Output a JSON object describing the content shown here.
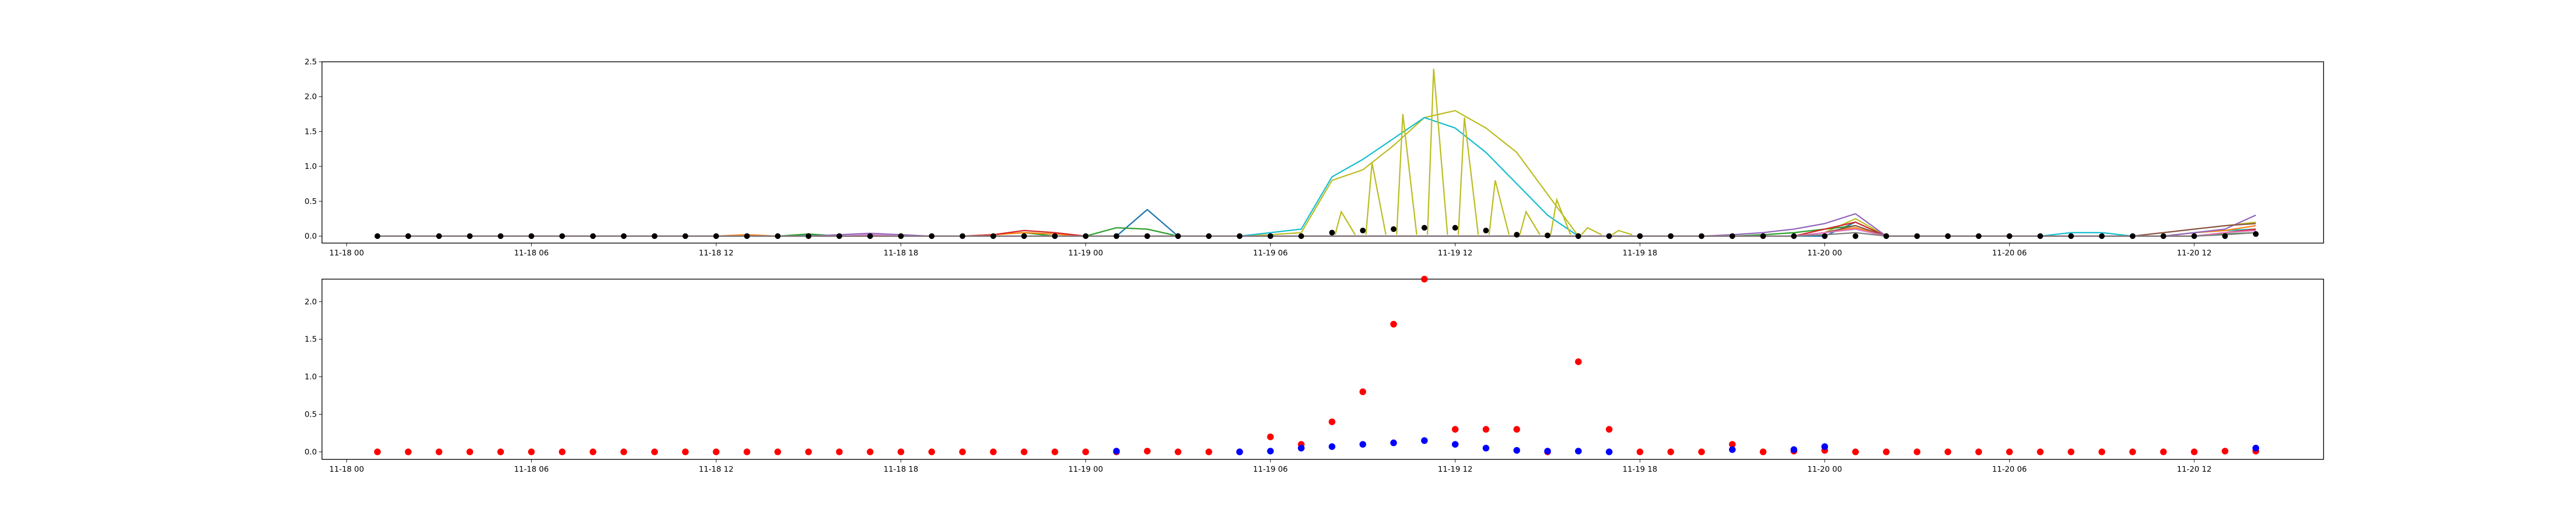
{
  "chart_data": [
    {
      "type": "line",
      "title": "",
      "xlabel": "",
      "ylabel": "",
      "grid": false,
      "legend": "none",
      "xlim": [
        -0.8,
        64.2
      ],
      "ylim": [
        -0.1,
        2.5
      ],
      "x_ticks": [
        {
          "x": 0,
          "label": "11-18 00"
        },
        {
          "x": 6,
          "label": "11-18 06"
        },
        {
          "x": 12,
          "label": "11-18 12"
        },
        {
          "x": 18,
          "label": "11-18 18"
        },
        {
          "x": 24,
          "label": "11-19 00"
        },
        {
          "x": 30,
          "label": "11-19 06"
        },
        {
          "x": 36,
          "label": "11-19 12"
        },
        {
          "x": 42,
          "label": "11-19 18"
        },
        {
          "x": 48,
          "label": "11-20 00"
        },
        {
          "x": 54,
          "label": "11-20 06"
        },
        {
          "x": 60,
          "label": "11-20 12"
        }
      ],
      "y_ticks": [
        {
          "y": 0,
          "label": "0.0"
        },
        {
          "y": 0.5,
          "label": "0.5"
        },
        {
          "y": 1,
          "label": "1.0"
        },
        {
          "y": 1.5,
          "label": "1.5"
        },
        {
          "y": 2,
          "label": "2.0"
        },
        {
          "y": 2.5,
          "label": "2.5"
        }
      ],
      "x_start": 1,
      "series": [
        {
          "color": "#bcbd22",
          "values": [
            0,
            0,
            0,
            0,
            0,
            0,
            0,
            0,
            0,
            0,
            0,
            0,
            0,
            0,
            0,
            0,
            0,
            0,
            0,
            0,
            0,
            0,
            0,
            0,
            0,
            0,
            0,
            0,
            0,
            0.02,
            0.05,
            0.8,
            0.95,
            1.3,
            1.7,
            1.8,
            1.55,
            1.2,
            0.6,
            0,
            0,
            0,
            0,
            0,
            0,
            0,
            0,
            0.05,
            0.25,
            0,
            0,
            0,
            0,
            0,
            0,
            0,
            0,
            0,
            0.05,
            0.1,
            0.15,
            0.2
          ]
        },
        {
          "color": "#17becf",
          "values": [
            0,
            0,
            0,
            0,
            0,
            0,
            0,
            0,
            0,
            0,
            0,
            0,
            0,
            0,
            0.02,
            0,
            0,
            0,
            0,
            0,
            0,
            0,
            0,
            0,
            0,
            0,
            0,
            0,
            0,
            0.05,
            0.1,
            0.85,
            1.1,
            1.4,
            1.7,
            1.55,
            1.2,
            0.75,
            0.3,
            0,
            0,
            0,
            0,
            0,
            0,
            0,
            0,
            0.05,
            0.1,
            0,
            0,
            0,
            0,
            0,
            0,
            0.05,
            0.05,
            0,
            0,
            0.05,
            0.08,
            0.1
          ]
        },
        {
          "color": "#1f77b4",
          "values": [
            0,
            0,
            0,
            0,
            0,
            0,
            0,
            0,
            0,
            0,
            0,
            0,
            0,
            0,
            0,
            0,
            0,
            0,
            0,
            0,
            0,
            0,
            0,
            0,
            0,
            0.38,
            0,
            0,
            0,
            0,
            0,
            0,
            0,
            0,
            0,
            0,
            0,
            0,
            0,
            0,
            0,
            0,
            0,
            0,
            0,
            0,
            0,
            0,
            0.2,
            0,
            0,
            0,
            0,
            0,
            0,
            0,
            0,
            0,
            0,
            0,
            0.05,
            0.1
          ]
        },
        {
          "color": "#2ca02c",
          "values": [
            0,
            0,
            0,
            0,
            0,
            0,
            0,
            0,
            0,
            0,
            0,
            0,
            0,
            0,
            0.03,
            0,
            0,
            0,
            0,
            0,
            0.02,
            0.05,
            0,
            0,
            0.12,
            0.1,
            0,
            0,
            0,
            0,
            0,
            0,
            0,
            0,
            0,
            0,
            0,
            0,
            0,
            0,
            0,
            0,
            0,
            0,
            0,
            0.02,
            0.05,
            0.1,
            0.15,
            0,
            0,
            0,
            0,
            0,
            0,
            0,
            0,
            0,
            0,
            0,
            0.03,
            0.05
          ]
        },
        {
          "color": "#ff7f0e",
          "values": [
            0,
            0,
            0,
            0,
            0,
            0,
            0,
            0,
            0,
            0,
            0,
            0,
            0.02,
            0,
            0,
            0,
            0,
            0,
            0,
            0,
            0.02,
            0.05,
            0.03,
            0,
            0,
            0,
            0,
            0,
            0,
            0,
            0,
            0,
            0,
            0,
            0,
            0,
            0,
            0,
            0,
            0,
            0,
            0,
            0,
            0,
            0,
            0,
            0,
            0.05,
            0.12,
            0,
            0,
            0,
            0,
            0,
            0,
            0,
            0,
            0,
            0,
            0.05,
            0.08,
            0.15
          ]
        },
        {
          "color": "#d62728",
          "values": [
            0,
            0,
            0,
            0,
            0,
            0,
            0,
            0,
            0,
            0,
            0,
            0,
            0,
            0,
            0,
            0,
            0,
            0,
            0,
            0,
            0.02,
            0.08,
            0.05,
            0,
            0,
            0,
            0,
            0,
            0,
            0,
            0,
            0,
            0,
            0,
            0,
            0,
            0,
            0,
            0,
            0,
            0,
            0,
            0,
            0,
            0,
            0,
            0,
            0.1,
            0.2,
            0,
            0,
            0,
            0,
            0,
            0,
            0,
            0,
            0,
            0,
            0,
            0.05,
            0.1
          ]
        },
        {
          "color": "#9467bd",
          "values": [
            0,
            0,
            0,
            0,
            0,
            0,
            0,
            0,
            0,
            0,
            0,
            0,
            0,
            0,
            0,
            0.02,
            0.04,
            0.02,
            0,
            0,
            0,
            0,
            0,
            0,
            0,
            0,
            0,
            0,
            0,
            0,
            0,
            0,
            0,
            0,
            0,
            0,
            0,
            0,
            0,
            0,
            0,
            0,
            0,
            0,
            0.02,
            0.05,
            0.1,
            0.18,
            0.32,
            0,
            0,
            0,
            0,
            0,
            0,
            0,
            0,
            0,
            0,
            0.05,
            0.1,
            0.3
          ]
        },
        {
          "color": "#8c564b",
          "values": [
            0,
            0,
            0,
            0,
            0,
            0,
            0,
            0,
            0,
            0,
            0,
            0,
            0,
            0,
            0,
            0,
            0,
            0,
            0,
            0,
            0,
            0,
            0,
            0,
            0,
            0,
            0,
            0,
            0,
            0,
            0,
            0,
            0,
            0,
            0,
            0,
            0,
            0,
            0,
            0,
            0,
            0,
            0,
            0,
            0,
            0,
            0,
            0.05,
            0.15,
            0,
            0,
            0,
            0,
            0,
            0,
            0,
            0,
            0,
            0.05,
            0.1,
            0.15,
            0.18
          ]
        },
        {
          "color": "#e377c2",
          "values": [
            0,
            0,
            0,
            0,
            0,
            0,
            0,
            0,
            0,
            0,
            0,
            0,
            0,
            0,
            0,
            0,
            0.02,
            0,
            0,
            0,
            0,
            0,
            0,
            0,
            0,
            0,
            0,
            0,
            0,
            0,
            0,
            0,
            0,
            0,
            0,
            0,
            0,
            0,
            0,
            0,
            0,
            0,
            0,
            0,
            0,
            0,
            0,
            0.05,
            0.1,
            0,
            0,
            0,
            0,
            0,
            0,
            0,
            0,
            0,
            0,
            0,
            0.05,
            0.08
          ]
        },
        {
          "color": "#7f7f7f",
          "values": [
            0,
            0,
            0,
            0,
            0,
            0,
            0,
            0,
            0,
            0,
            0,
            0,
            0,
            0,
            0,
            0,
            0,
            0,
            0,
            0,
            0,
            0,
            0,
            0,
            0,
            0,
            0,
            0,
            0,
            0,
            0,
            0,
            0,
            0,
            0,
            0,
            0,
            0,
            0,
            0,
            0,
            0,
            0,
            0,
            0,
            0,
            0,
            0.02,
            0.05,
            0,
            0,
            0,
            0,
            0,
            0,
            0,
            0,
            0,
            0,
            0,
            0.02,
            0.05
          ]
        }
      ],
      "spike_series": {
        "color": "#bcbd22",
        "x": [
          32.3,
          33.3,
          34.3,
          35.3,
          36.3,
          37.3,
          38.3,
          39.3,
          40.3,
          41.3
        ],
        "peak": [
          0.35,
          1.05,
          1.75,
          2.4,
          1.7,
          0.8,
          0.35,
          0.52,
          0.12,
          0.08
        ]
      },
      "markers": {
        "color": "#000000",
        "x": [
          1,
          2,
          3,
          4,
          5,
          6,
          7,
          8,
          9,
          10,
          11,
          12,
          13,
          14,
          15,
          16,
          17,
          18,
          19,
          20,
          21,
          22,
          23,
          24,
          25,
          26,
          27,
          28,
          29,
          30,
          31,
          32,
          33,
          34,
          35,
          36,
          37,
          38,
          39,
          40,
          41,
          42,
          43,
          44,
          45,
          46,
          47,
          48,
          49,
          50,
          51,
          52,
          53,
          54,
          55,
          56,
          57,
          58,
          59,
          60,
          61,
          62
        ],
        "y": [
          0,
          0,
          0,
          0,
          0,
          0,
          0,
          0,
          0,
          0,
          0,
          0,
          0,
          0,
          0,
          0,
          0,
          0,
          0,
          0,
          0,
          0,
          0,
          0,
          0,
          0,
          0,
          0,
          0,
          0,
          0,
          0.05,
          0.08,
          0.1,
          0.12,
          0.12,
          0.08,
          0.02,
          0.01,
          0,
          0,
          0,
          0,
          0,
          0,
          0,
          0,
          0,
          0,
          0,
          0,
          0,
          0,
          0,
          0,
          0,
          0,
          0,
          0,
          0,
          0,
          0.03
        ]
      }
    },
    {
      "type": "scatter",
      "title": "",
      "xlabel": "",
      "ylabel": "",
      "grid": false,
      "legend": "none",
      "xlim": [
        -0.8,
        64.2
      ],
      "ylim": [
        -0.1,
        2.3
      ],
      "x_ticks": [
        {
          "x": 0,
          "label": "11-18 00"
        },
        {
          "x": 6,
          "label": "11-18 06"
        },
        {
          "x": 12,
          "label": "11-18 12"
        },
        {
          "x": 18,
          "label": "11-18 18"
        },
        {
          "x": 24,
          "label": "11-19 00"
        },
        {
          "x": 30,
          "label": "11-19 06"
        },
        {
          "x": 36,
          "label": "11-19 12"
        },
        {
          "x": 42,
          "label": "11-19 18"
        },
        {
          "x": 48,
          "label": "11-20 00"
        },
        {
          "x": 54,
          "label": "11-20 06"
        },
        {
          "x": 60,
          "label": "11-20 12"
        }
      ],
      "y_ticks": [
        {
          "y": 0,
          "label": "0.0"
        },
        {
          "y": 0.5,
          "label": "0.5"
        },
        {
          "y": 1,
          "label": "1.0"
        },
        {
          "y": 1.5,
          "label": "1.5"
        },
        {
          "y": 2,
          "label": "2.0"
        }
      ],
      "series": [
        {
          "color": "#ff0000",
          "x": [
            1,
            2,
            3,
            4,
            5,
            6,
            7,
            8,
            9,
            10,
            11,
            12,
            13,
            14,
            15,
            16,
            17,
            18,
            19,
            20,
            21,
            22,
            23,
            24,
            25,
            26,
            27,
            28,
            29,
            30,
            31,
            32,
            33,
            34,
            35,
            36,
            37,
            38,
            39,
            40,
            41,
            42,
            43,
            44,
            45,
            46,
            47,
            48,
            49,
            50,
            51,
            52,
            53,
            54,
            55,
            56,
            57,
            58,
            59,
            60,
            61,
            62
          ],
          "values": [
            0,
            0,
            0,
            0,
            0,
            0,
            0,
            0,
            0,
            0,
            0,
            0,
            0,
            0,
            0,
            0,
            0,
            0,
            0,
            0,
            0,
            0,
            0,
            0,
            0,
            0.01,
            0,
            0,
            0,
            0.2,
            0.1,
            0.4,
            0.8,
            1.7,
            2.3,
            0.3,
            0.3,
            0.3,
            0,
            1.2,
            0.3,
            0,
            0,
            0,
            0.1,
            0,
            0.01,
            0.02,
            0,
            0,
            0,
            0,
            0,
            0,
            0,
            0,
            0,
            0,
            0,
            0,
            0.01,
            0.01
          ]
        },
        {
          "color": "#0000ff",
          "x": [
            25,
            29,
            30,
            31,
            32,
            33,
            34,
            35,
            36,
            37,
            38,
            39,
            40,
            41,
            45,
            47,
            48,
            62
          ],
          "values": [
            0.01,
            0,
            0.01,
            0.05,
            0.07,
            0.1,
            0.12,
            0.15,
            0.1,
            0.05,
            0.02,
            0.01,
            0.01,
            0,
            0.03,
            0.03,
            0.07,
            0.05
          ]
        }
      ]
    }
  ]
}
